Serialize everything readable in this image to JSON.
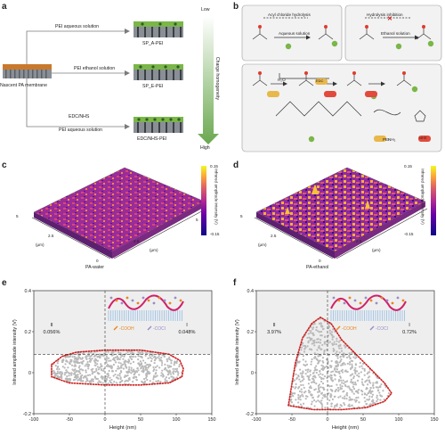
{
  "panels": {
    "a": {
      "letter": "a",
      "nascent_label": "Nascent PA membrane",
      "arrows": [
        {
          "label": "PEI aqueous solution",
          "product": "SP_A-PEI"
        },
        {
          "label": "PEI ethanol solution",
          "product": "SP_E-PEI"
        },
        {
          "label_top": "EDC/NHS",
          "label_bottom": "PEI aqueous solution",
          "product": "EDC/NHS-PEI"
        }
      ],
      "gradient": {
        "low": "Low",
        "high": "High",
        "axis_label": "Charge homogeneity"
      }
    },
    "b": {
      "letter": "b",
      "box1": {
        "title": "Acyl chloride hydrolysis",
        "step": "Aqueous solution"
      },
      "box2": {
        "title": "Hydrolysis inhibition",
        "step": "Ethanol solution"
      },
      "reagent_water": "H₂O",
      "pei_short": "PEI",
      "nh2": "NH₂",
      "edc_badge": "EDC",
      "nhs_badge": "NHS"
    },
    "c": {
      "letter": "c",
      "sample": "PA-water",
      "axis_um": "(μm)",
      "tick_25": "2.5",
      "tick_5": "5",
      "tick_0": "0",
      "colorbar": {
        "max": "0.15",
        "min": "-0.15",
        "label": "Infrared amplitude intensity (V)"
      }
    },
    "d": {
      "letter": "d",
      "sample": "PA-ethanol",
      "axis_um": "(μm)",
      "tick_25": "2.5",
      "tick_5": "5",
      "tick_0": "0",
      "colorbar": {
        "max": "0.15",
        "min": "-0.15",
        "label": "Infrared amplitude intensity (V)"
      }
    }
  },
  "legend": {
    "cooh": "-COOH",
    "cocl": "-COCl"
  },
  "chart_data": [
    {
      "panel": "e",
      "type": "scatter",
      "xlabel": "Height (nm)",
      "ylabel": "Infrared amplitude intensity (V)",
      "xlim": [
        -100,
        150
      ],
      "ylim": [
        -0.2,
        0.4
      ],
      "xticks": [
        -100,
        -50,
        0,
        50,
        100,
        150
      ],
      "yticks": [
        -0.2,
        0,
        0.2,
        0.4
      ],
      "threshold_y": 0.09,
      "quadrants": [
        {
          "id": "II",
          "value": "0.056%"
        },
        {
          "id": "I",
          "value": "0.048%"
        }
      ],
      "envelope": [
        [
          -75,
          0.04
        ],
        [
          -60,
          0.08
        ],
        [
          -40,
          0.1
        ],
        [
          0,
          0.11
        ],
        [
          50,
          0.11
        ],
        [
          90,
          0.09
        ],
        [
          105,
          0.06
        ],
        [
          110,
          0.02
        ],
        [
          108,
          -0.02
        ],
        [
          90,
          -0.05
        ],
        [
          50,
          -0.06
        ],
        [
          0,
          -0.06
        ],
        [
          -50,
          -0.05
        ],
        [
          -75,
          -0.02
        ]
      ]
    },
    {
      "panel": "f",
      "type": "scatter",
      "xlabel": "Height (nm)",
      "ylabel": "Infrared amplitude intensity (V)",
      "xlim": [
        -100,
        150
      ],
      "ylim": [
        -0.2,
        0.4
      ],
      "xticks": [
        -100,
        -50,
        0,
        50,
        100,
        150
      ],
      "yticks": [
        -0.2,
        0,
        0.2,
        0.4
      ],
      "threshold_y": 0.09,
      "quadrants": [
        {
          "id": "II",
          "value": "3.97%"
        },
        {
          "id": "I",
          "value": "0.72%"
        }
      ],
      "envelope": [
        [
          -55,
          -0.16
        ],
        [
          -45,
          0.05
        ],
        [
          -35,
          0.17
        ],
        [
          -22,
          0.24
        ],
        [
          -10,
          0.27
        ],
        [
          5,
          0.24
        ],
        [
          20,
          0.16
        ],
        [
          40,
          0.09
        ],
        [
          60,
          0.02
        ],
        [
          80,
          -0.05
        ],
        [
          90,
          -0.1
        ],
        [
          80,
          -0.14
        ],
        [
          55,
          -0.17
        ],
        [
          20,
          -0.18
        ],
        [
          -20,
          -0.18
        ]
      ]
    }
  ],
  "colors": {
    "membrane_orange": "#c9792c",
    "pei_green": "#7ab648",
    "red_dots": "#d01c1c",
    "scatter_grey": "#b9b9b9",
    "wave_pink": "#d0206a",
    "cooh_orange": "#e8841f",
    "cocl_purple": "#9a8ac6"
  }
}
